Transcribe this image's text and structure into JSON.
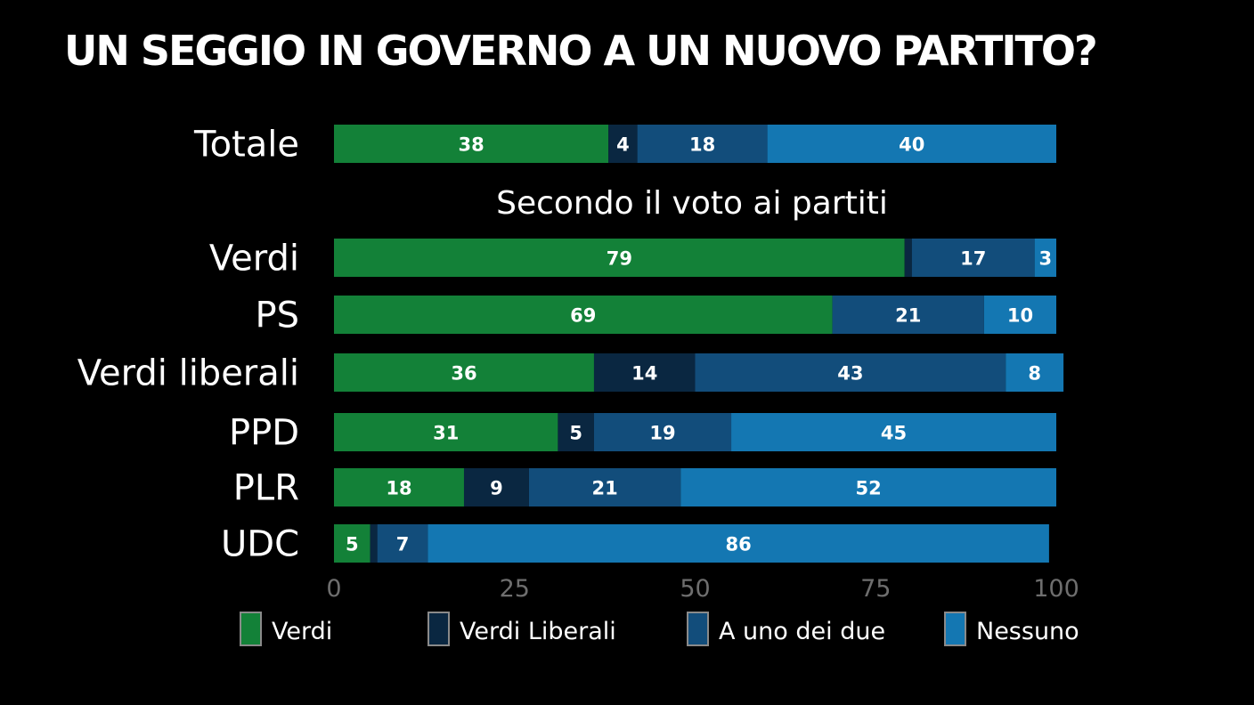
{
  "title": "UN SEGGIO IN GOVERNO A UN NUOVO PARTITO?",
  "chart_data": {
    "type": "bar",
    "orientation": "horizontal",
    "stacked": true,
    "subtitle": "Secondo il voto ai partiti",
    "categories": [
      "Totale",
      "Verdi",
      "PS",
      "Verdi liberali",
      "PPD",
      "PLR",
      "UDC"
    ],
    "series": [
      {
        "name": "Verdi",
        "color": "#138138",
        "values": [
          38,
          79,
          69,
          36,
          31,
          18,
          5
        ]
      },
      {
        "name": "Verdi Liberali",
        "color": "#0a2741",
        "values": [
          4,
          1,
          0,
          14,
          5,
          9,
          1
        ]
      },
      {
        "name": "A uno dei due",
        "color": "#124d7b",
        "values": [
          18,
          17,
          21,
          43,
          19,
          21,
          7
        ]
      },
      {
        "name": "Nessuno",
        "color": "#1477b2",
        "values": [
          40,
          3,
          10,
          8,
          45,
          52,
          86
        ]
      }
    ],
    "xlim": [
      0,
      100
    ],
    "xticks": [
      "0",
      "25",
      "50",
      "75",
      "100"
    ],
    "grid": false,
    "legend": "bottom"
  }
}
